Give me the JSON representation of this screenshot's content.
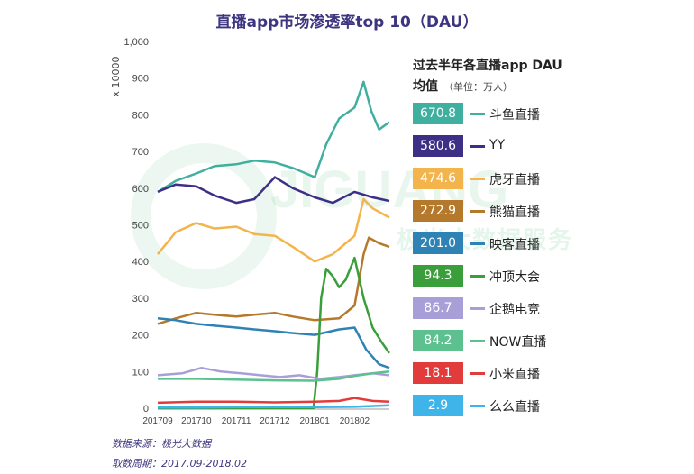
{
  "title": "直播app市场渗透率top 10（DAU）",
  "footer": {
    "source": "数据来源：极光大数据",
    "period": "取数周期：2017.09-2018.02"
  },
  "watermark": {
    "brand": "JIGUANG",
    "tagline": "极光大数据服务"
  },
  "legend": {
    "title": "过去半年各直播app DAU",
    "subtitle": "均值",
    "unit": "（单位：万人）"
  },
  "chart_data": {
    "type": "line",
    "title": "直播app市场渗透率top 10（DAU）",
    "ylabel": "x 10000",
    "ylim": [
      0,
      1000
    ],
    "yticks": [
      "0",
      "100",
      "200",
      "300",
      "400",
      "500",
      "600",
      "700",
      "800",
      "900",
      "1,000"
    ],
    "xlim": [
      "2017-09-01",
      "2018-02-28"
    ],
    "xticks": [
      {
        "label": "201709",
        "date": "2017-09-01"
      },
      {
        "label": "201710",
        "date": "2017-10-01"
      },
      {
        "label": "201711",
        "date": "2017-11-01"
      },
      {
        "label": "201712",
        "date": "2017-12-01"
      },
      {
        "label": "201801",
        "date": "2018-01-01"
      },
      {
        "label": "201802",
        "date": "2018-02-01"
      }
    ],
    "series": [
      {
        "name": "斗鱼直播",
        "mean": "670.8",
        "color": "#3fb09f",
        "points": [
          [
            "2017-09-01",
            590
          ],
          [
            "2017-09-15",
            620
          ],
          [
            "2017-10-01",
            640
          ],
          [
            "2017-10-15",
            660
          ],
          [
            "2017-11-01",
            665
          ],
          [
            "2017-11-15",
            675
          ],
          [
            "2017-12-01",
            670
          ],
          [
            "2017-12-15",
            655
          ],
          [
            "2018-01-01",
            630
          ],
          [
            "2018-01-10",
            720
          ],
          [
            "2018-01-20",
            790
          ],
          [
            "2018-02-01",
            820
          ],
          [
            "2018-02-08",
            890
          ],
          [
            "2018-02-14",
            810
          ],
          [
            "2018-02-20",
            760
          ],
          [
            "2018-02-28",
            780
          ]
        ]
      },
      {
        "name": "YY",
        "mean": "580.6",
        "color": "#3e2f86",
        "points": [
          [
            "2017-09-01",
            590
          ],
          [
            "2017-09-15",
            610
          ],
          [
            "2017-10-01",
            605
          ],
          [
            "2017-10-15",
            580
          ],
          [
            "2017-11-01",
            560
          ],
          [
            "2017-11-15",
            570
          ],
          [
            "2017-12-01",
            630
          ],
          [
            "2017-12-15",
            600
          ],
          [
            "2018-01-01",
            575
          ],
          [
            "2018-01-15",
            560
          ],
          [
            "2018-02-01",
            590
          ],
          [
            "2018-02-15",
            575
          ],
          [
            "2018-02-28",
            565
          ]
        ]
      },
      {
        "name": "虎牙直播",
        "mean": "474.6",
        "color": "#f4b44c",
        "points": [
          [
            "2017-09-01",
            420
          ],
          [
            "2017-09-15",
            480
          ],
          [
            "2017-10-01",
            505
          ],
          [
            "2017-10-15",
            490
          ],
          [
            "2017-11-01",
            495
          ],
          [
            "2017-11-15",
            475
          ],
          [
            "2017-12-01",
            470
          ],
          [
            "2017-12-15",
            440
          ],
          [
            "2018-01-01",
            400
          ],
          [
            "2018-01-15",
            420
          ],
          [
            "2018-02-01",
            470
          ],
          [
            "2018-02-08",
            570
          ],
          [
            "2018-02-15",
            545
          ],
          [
            "2018-02-28",
            520
          ]
        ]
      },
      {
        "name": "熊猫直播",
        "mean": "272.9",
        "color": "#b5792b",
        "points": [
          [
            "2017-09-01",
            230
          ],
          [
            "2017-09-15",
            245
          ],
          [
            "2017-10-01",
            260
          ],
          [
            "2017-10-15",
            255
          ],
          [
            "2017-11-01",
            250
          ],
          [
            "2017-11-15",
            255
          ],
          [
            "2017-12-01",
            260
          ],
          [
            "2017-12-15",
            250
          ],
          [
            "2018-01-01",
            240
          ],
          [
            "2018-01-20",
            245
          ],
          [
            "2018-02-01",
            280
          ],
          [
            "2018-02-08",
            420
          ],
          [
            "2018-02-12",
            465
          ],
          [
            "2018-02-20",
            450
          ],
          [
            "2018-02-28",
            440
          ]
        ]
      },
      {
        "name": "映客直播",
        "mean": "201.0",
        "color": "#2e82b4",
        "points": [
          [
            "2017-09-01",
            245
          ],
          [
            "2017-09-15",
            240
          ],
          [
            "2017-10-01",
            230
          ],
          [
            "2017-10-15",
            225
          ],
          [
            "2017-11-01",
            220
          ],
          [
            "2017-11-15",
            215
          ],
          [
            "2017-12-01",
            210
          ],
          [
            "2017-12-15",
            205
          ],
          [
            "2018-01-01",
            200
          ],
          [
            "2018-01-20",
            215
          ],
          [
            "2018-02-01",
            220
          ],
          [
            "2018-02-10",
            160
          ],
          [
            "2018-02-20",
            120
          ],
          [
            "2018-02-28",
            110
          ]
        ]
      },
      {
        "name": "冲顶大会",
        "mean": "94.3",
        "color": "#3a9e3a",
        "points": [
          [
            "2017-09-01",
            0
          ],
          [
            "2017-12-31",
            0
          ],
          [
            "2018-01-03",
            100
          ],
          [
            "2018-01-06",
            300
          ],
          [
            "2018-01-10",
            380
          ],
          [
            "2018-01-15",
            360
          ],
          [
            "2018-01-20",
            330
          ],
          [
            "2018-01-25",
            350
          ],
          [
            "2018-02-01",
            410
          ],
          [
            "2018-02-08",
            300
          ],
          [
            "2018-02-15",
            220
          ],
          [
            "2018-02-22",
            180
          ],
          [
            "2018-02-28",
            150
          ]
        ]
      },
      {
        "name": "企鹅电竞",
        "mean": "86.7",
        "color": "#a89fd8",
        "points": [
          [
            "2017-09-01",
            90
          ],
          [
            "2017-09-20",
            95
          ],
          [
            "2017-10-05",
            110
          ],
          [
            "2017-10-20",
            100
          ],
          [
            "2017-11-05",
            95
          ],
          [
            "2017-11-20",
            90
          ],
          [
            "2017-12-05",
            85
          ],
          [
            "2017-12-20",
            90
          ],
          [
            "2018-01-05",
            80
          ],
          [
            "2018-01-20",
            85
          ],
          [
            "2018-02-01",
            90
          ],
          [
            "2018-02-15",
            95
          ],
          [
            "2018-02-28",
            90
          ]
        ]
      },
      {
        "name": "NOW直播",
        "mean": "84.2",
        "color": "#5cc08f",
        "points": [
          [
            "2017-09-01",
            80
          ],
          [
            "2017-10-01",
            80
          ],
          [
            "2017-11-01",
            78
          ],
          [
            "2017-12-01",
            76
          ],
          [
            "2018-01-01",
            75
          ],
          [
            "2018-01-20",
            80
          ],
          [
            "2018-02-01",
            88
          ],
          [
            "2018-02-15",
            95
          ],
          [
            "2018-02-28",
            100
          ]
        ]
      },
      {
        "name": "小米直播",
        "mean": "18.1",
        "color": "#e23b3b",
        "points": [
          [
            "2017-09-01",
            15
          ],
          [
            "2017-10-01",
            18
          ],
          [
            "2017-11-01",
            18
          ],
          [
            "2017-12-01",
            16
          ],
          [
            "2018-01-01",
            18
          ],
          [
            "2018-01-20",
            20
          ],
          [
            "2018-02-01",
            28
          ],
          [
            "2018-02-15",
            20
          ],
          [
            "2018-02-28",
            18
          ]
        ]
      },
      {
        "name": "么么直播",
        "mean": "2.9",
        "color": "#3fb4e8",
        "points": [
          [
            "2017-09-01",
            2
          ],
          [
            "2017-10-01",
            2
          ],
          [
            "2017-11-01",
            3
          ],
          [
            "2017-12-01",
            3
          ],
          [
            "2018-01-01",
            3
          ],
          [
            "2018-02-01",
            4
          ],
          [
            "2018-02-28",
            8
          ]
        ]
      }
    ]
  }
}
